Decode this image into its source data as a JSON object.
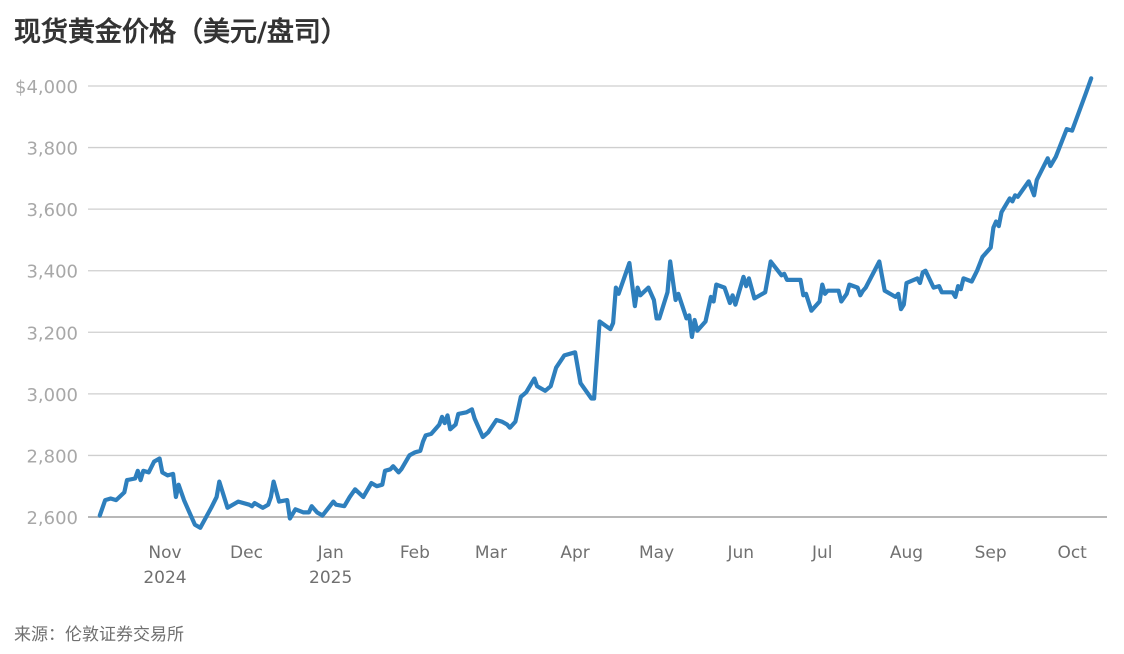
{
  "chart_data": {
    "type": "line",
    "title": "现货黄金价格（美元/盘司）",
    "source": "来源：伦敦证券交易所",
    "xlabel": "",
    "ylabel": "",
    "ylim": [
      2600,
      4000
    ],
    "y_ticks": [
      {
        "value": 4000,
        "label": "$4,000"
      },
      {
        "value": 3800,
        "label": "3,800"
      },
      {
        "value": 3600,
        "label": "3,600"
      },
      {
        "value": 3400,
        "label": "3,400"
      },
      {
        "value": 3200,
        "label": "3,200"
      },
      {
        "value": 3000,
        "label": "3,000"
      },
      {
        "value": 2800,
        "label": "2,800"
      },
      {
        "value": 2600,
        "label": "2,600"
      }
    ],
    "x_ticks": [
      {
        "date": "2024-11-01",
        "label": "Nov",
        "year": "2024"
      },
      {
        "date": "2024-12-01",
        "label": "Dec"
      },
      {
        "date": "2025-01-01",
        "label": "Jan",
        "year": "2025"
      },
      {
        "date": "2025-02-01",
        "label": "Feb"
      },
      {
        "date": "2025-03-01",
        "label": "Mar"
      },
      {
        "date": "2025-04-01",
        "label": "Apr"
      },
      {
        "date": "2025-05-01",
        "label": "May"
      },
      {
        "date": "2025-06-01",
        "label": "Jun"
      },
      {
        "date": "2025-07-01",
        "label": "Jul"
      },
      {
        "date": "2025-08-01",
        "label": "Aug"
      },
      {
        "date": "2025-09-01",
        "label": "Sep"
      },
      {
        "date": "2025-10-01",
        "label": "Oct"
      }
    ],
    "grid": "horizontal",
    "line_color": "#2e7fbd",
    "series": [
      {
        "x": [
          "2024-10-08",
          "2024-10-10",
          "2024-10-12",
          "2024-10-14",
          "2024-10-17",
          "2024-10-18",
          "2024-10-21",
          "2024-10-22",
          "2024-10-23",
          "2024-10-24",
          "2024-10-26",
          "2024-10-28",
          "2024-10-30",
          "2024-10-31",
          "2024-11-02",
          "2024-11-04",
          "2024-11-05",
          "2024-11-06",
          "2024-11-08",
          "2024-11-10",
          "2024-11-12",
          "2024-11-14",
          "2024-11-18",
          "2024-11-20",
          "2024-11-21",
          "2024-11-24",
          "2024-11-28",
          "2024-12-02",
          "2024-12-03",
          "2024-12-04",
          "2024-12-07",
          "2024-12-09",
          "2024-12-10",
          "2024-12-11",
          "2024-12-13",
          "2024-12-16",
          "2024-12-17",
          "2024-12-19",
          "2024-12-22",
          "2024-12-24",
          "2024-12-25",
          "2024-12-27",
          "2024-12-29",
          "2025-01-02",
          "2025-01-03",
          "2025-01-06",
          "2025-01-08",
          "2025-01-10",
          "2025-01-13",
          "2025-01-16",
          "2025-01-18",
          "2025-01-20",
          "2025-01-21",
          "2025-01-23",
          "2025-01-24",
          "2025-01-26",
          "2025-01-27",
          "2025-01-30",
          "2025-02-01",
          "2025-02-03",
          "2025-02-04",
          "2025-02-05",
          "2025-02-07",
          "2025-02-10",
          "2025-02-11",
          "2025-02-12",
          "2025-02-13",
          "2025-02-14",
          "2025-02-16",
          "2025-02-17",
          "2025-02-20",
          "2025-02-22",
          "2025-02-23",
          "2025-02-24",
          "2025-02-26",
          "2025-02-28",
          "2025-03-03",
          "2025-03-05",
          "2025-03-07",
          "2025-03-08",
          "2025-03-10",
          "2025-03-11",
          "2025-03-12",
          "2025-03-14",
          "2025-03-17",
          "2025-03-18",
          "2025-03-21",
          "2025-03-23",
          "2025-03-25",
          "2025-03-28",
          "2025-04-01",
          "2025-04-03",
          "2025-04-07",
          "2025-04-08",
          "2025-04-10",
          "2025-04-14",
          "2025-04-15",
          "2025-04-16",
          "2025-04-17",
          "2025-04-21",
          "2025-04-23",
          "2025-04-24",
          "2025-04-25",
          "2025-04-28",
          "2025-04-30",
          "2025-05-01",
          "2025-05-02",
          "2025-05-05",
          "2025-05-06",
          "2025-05-08",
          "2025-05-09",
          "2025-05-12",
          "2025-05-13",
          "2025-05-14",
          "2025-05-15",
          "2025-05-16",
          "2025-05-19",
          "2025-05-21",
          "2025-05-22",
          "2025-05-23",
          "2025-05-26",
          "2025-05-28",
          "2025-05-29",
          "2025-05-30",
          "2025-06-02",
          "2025-06-03",
          "2025-06-04",
          "2025-06-06",
          "2025-06-09",
          "2025-06-10",
          "2025-06-12",
          "2025-06-16",
          "2025-06-17",
          "2025-06-18",
          "2025-06-23",
          "2025-06-24",
          "2025-06-25",
          "2025-06-27",
          "2025-06-30",
          "2025-07-01",
          "2025-07-02",
          "2025-07-03",
          "2025-07-07",
          "2025-07-08",
          "2025-07-10",
          "2025-07-11",
          "2025-07-14",
          "2025-07-15",
          "2025-07-16",
          "2025-07-17",
          "2025-07-22",
          "2025-07-24",
          "2025-07-28",
          "2025-07-29",
          "2025-07-30",
          "2025-07-31",
          "2025-08-01",
          "2025-08-05",
          "2025-08-06",
          "2025-08-07",
          "2025-08-08",
          "2025-08-11",
          "2025-08-13",
          "2025-08-14",
          "2025-08-18",
          "2025-08-19",
          "2025-08-20",
          "2025-08-21",
          "2025-08-22",
          "2025-08-25",
          "2025-08-27",
          "2025-08-29",
          "2025-09-01",
          "2025-09-02",
          "2025-09-03",
          "2025-09-04",
          "2025-09-05",
          "2025-09-08",
          "2025-09-09",
          "2025-09-10",
          "2025-09-11",
          "2025-09-15",
          "2025-09-17",
          "2025-09-18",
          "2025-09-22",
          "2025-09-23",
          "2025-09-25",
          "2025-09-29",
          "2025-10-01",
          "2025-10-06",
          "2025-10-08"
        ],
        "values": [
          2605,
          2655,
          2660,
          2655,
          2680,
          2720,
          2725,
          2750,
          2720,
          2750,
          2745,
          2780,
          2790,
          2745,
          2735,
          2740,
          2665,
          2705,
          2655,
          2615,
          2575,
          2565,
          2630,
          2665,
          2715,
          2630,
          2650,
          2640,
          2635,
          2645,
          2630,
          2640,
          2665,
          2715,
          2650,
          2655,
          2595,
          2625,
          2615,
          2615,
          2635,
          2615,
          2605,
          2650,
          2640,
          2635,
          2665,
          2690,
          2665,
          2710,
          2700,
          2705,
          2750,
          2755,
          2765,
          2745,
          2755,
          2800,
          2810,
          2815,
          2845,
          2865,
          2870,
          2900,
          2925,
          2905,
          2930,
          2885,
          2900,
          2935,
          2940,
          2950,
          2920,
          2900,
          2860,
          2875,
          2915,
          2910,
          2900,
          2890,
          2910,
          2950,
          2990,
          3005,
          3050,
          3025,
          3010,
          3025,
          3085,
          3125,
          3135,
          3035,
          2985,
          2985,
          3235,
          3210,
          3230,
          3345,
          3325,
          3425,
          3285,
          3345,
          3320,
          3345,
          3305,
          3245,
          3245,
          3330,
          3430,
          3305,
          3325,
          3245,
          3255,
          3185,
          3240,
          3205,
          3235,
          3315,
          3300,
          3355,
          3345,
          3295,
          3320,
          3290,
          3380,
          3350,
          3375,
          3310,
          3325,
          3330,
          3430,
          3385,
          3390,
          3370,
          3370,
          3320,
          3325,
          3270,
          3300,
          3355,
          3325,
          3335,
          3335,
          3300,
          3325,
          3355,
          3345,
          3320,
          3335,
          3345,
          3430,
          3335,
          3315,
          3325,
          3275,
          3290,
          3360,
          3375,
          3360,
          3395,
          3400,
          3345,
          3350,
          3330,
          3330,
          3315,
          3350,
          3340,
          3375,
          3365,
          3400,
          3445,
          3475,
          3540,
          3560,
          3545,
          3590,
          3635,
          3625,
          3645,
          3640,
          3690,
          3645,
          3695,
          3765,
          3740,
          3770,
          3860,
          3855,
          3975,
          4025
        ]
      }
    ]
  }
}
